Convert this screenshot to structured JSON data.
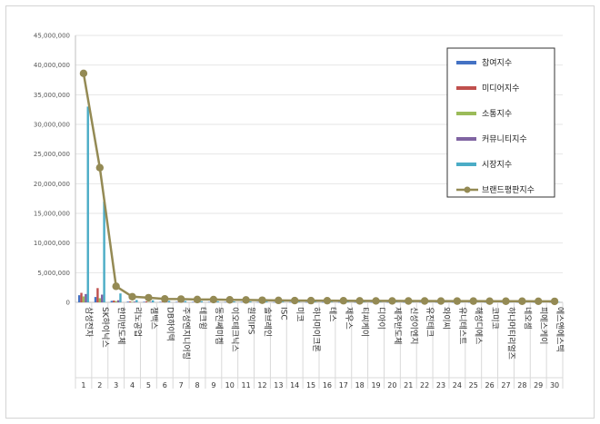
{
  "chart_data": {
    "type": "bar",
    "title": "",
    "xlabel": "",
    "ylabel": "",
    "ylim": [
      0,
      45000000
    ],
    "y_ticks": [
      "0",
      "5,000,000",
      "10,000,000",
      "15,000,000",
      "20,000,000",
      "25,000,000",
      "30,000,000",
      "35,000,000",
      "40,000,000",
      "45,000,000"
    ],
    "grid": true,
    "legend_position": "top-right",
    "categories": [
      "삼성전자",
      "SK하이닉스",
      "한미반도체",
      "리노공업",
      "젬백스",
      "DB하이텍",
      "주성엔지니어링",
      "테크윙",
      "동진쎄미켐",
      "이오테크닉스",
      "원익IPS",
      "솔브레인",
      "ISC",
      "미코",
      "하나마이크론",
      "테스",
      "제우스",
      "티씨케이",
      "디아이",
      "제주반도체",
      "신성이엔지",
      "유진테크",
      "와이씨",
      "유니테스트",
      "해성디에스",
      "코미코",
      "하나머티리얼즈",
      "네오셈",
      "피에스케이",
      "에스앤에스텍"
    ],
    "category_numbers": [
      "1",
      "2",
      "3",
      "4",
      "5",
      "6",
      "7",
      "8",
      "9",
      "10",
      "11",
      "12",
      "13",
      "14",
      "15",
      "16",
      "17",
      "18",
      "19",
      "20",
      "21",
      "22",
      "23",
      "24",
      "25",
      "26",
      "27",
      "28",
      "29",
      "30"
    ],
    "series": [
      {
        "name": "참여지수",
        "color": "#4472c4",
        "type": "bar",
        "values": [
          1200000,
          900000,
          250000,
          120000,
          100000,
          80000,
          80000,
          70000,
          70000,
          60000,
          60000,
          50000,
          40000,
          40000,
          40000,
          40000,
          40000,
          30000,
          30000,
          30000,
          30000,
          30000,
          30000,
          30000,
          30000,
          30000,
          30000,
          30000,
          30000,
          30000
        ]
      },
      {
        "name": "미디어지수",
        "color": "#c0504d",
        "type": "bar",
        "values": [
          1600000,
          2400000,
          300000,
          150000,
          150000,
          100000,
          100000,
          80000,
          80000,
          80000,
          80000,
          70000,
          60000,
          50000,
          50000,
          50000,
          50000,
          40000,
          40000,
          40000,
          40000,
          40000,
          40000,
          40000,
          40000,
          40000,
          40000,
          40000,
          40000,
          40000
        ]
      },
      {
        "name": "소통지수",
        "color": "#9bbb59",
        "type": "bar",
        "values": [
          1000000,
          700000,
          200000,
          100000,
          80000,
          60000,
          60000,
          50000,
          50000,
          50000,
          50000,
          40000,
          40000,
          30000,
          30000,
          30000,
          30000,
          30000,
          30000,
          30000,
          30000,
          30000,
          30000,
          30000,
          30000,
          30000,
          30000,
          30000,
          30000,
          30000
        ]
      },
      {
        "name": "커뮤니티지수",
        "color": "#8064a2",
        "type": "bar",
        "values": [
          1400000,
          1300000,
          350000,
          130000,
          100000,
          90000,
          80000,
          70000,
          70000,
          60000,
          60000,
          50000,
          50000,
          40000,
          40000,
          40000,
          40000,
          30000,
          30000,
          30000,
          30000,
          30000,
          30000,
          30000,
          30000,
          30000,
          30000,
          30000,
          30000,
          30000
        ]
      },
      {
        "name": "시장지수",
        "color": "#4bacc6",
        "type": "bar",
        "values": [
          33000000,
          17000000,
          1500000,
          400000,
          350000,
          250000,
          220000,
          200000,
          180000,
          160000,
          150000,
          140000,
          130000,
          120000,
          110000,
          100000,
          100000,
          90000,
          90000,
          90000,
          80000,
          80000,
          80000,
          70000,
          70000,
          70000,
          60000,
          60000,
          60000,
          60000
        ]
      },
      {
        "name": "브랜드평판지수",
        "color": "#948a54",
        "type": "line",
        "values": [
          38600000,
          22700000,
          2700000,
          950000,
          780000,
          580000,
          550000,
          480000,
          470000,
          420000,
          400000,
          360000,
          330000,
          300000,
          290000,
          280000,
          270000,
          250000,
          240000,
          240000,
          230000,
          230000,
          220000,
          210000,
          210000,
          200000,
          190000,
          190000,
          180000,
          170000
        ]
      }
    ]
  }
}
